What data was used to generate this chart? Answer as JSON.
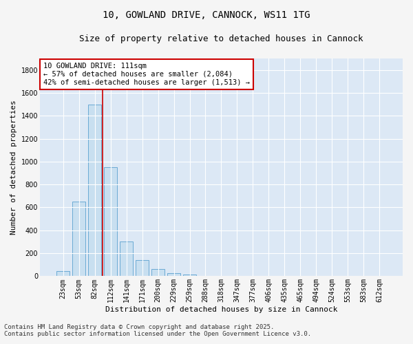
{
  "title_line1": "10, GOWLAND DRIVE, CANNOCK, WS11 1TG",
  "title_line2": "Size of property relative to detached houses in Cannock",
  "xlabel": "Distribution of detached houses by size in Cannock",
  "ylabel": "Number of detached properties",
  "categories": [
    "23sqm",
    "53sqm",
    "82sqm",
    "112sqm",
    "141sqm",
    "171sqm",
    "200sqm",
    "229sqm",
    "259sqm",
    "288sqm",
    "318sqm",
    "347sqm",
    "377sqm",
    "406sqm",
    "435sqm",
    "465sqm",
    "494sqm",
    "524sqm",
    "553sqm",
    "583sqm",
    "612sqm"
  ],
  "values": [
    45,
    650,
    1500,
    950,
    300,
    140,
    65,
    25,
    15,
    5,
    2,
    1,
    0,
    0,
    0,
    0,
    0,
    0,
    0,
    0,
    0
  ],
  "bar_color": "#c8dff0",
  "bar_edgecolor": "#6aaad4",
  "vline_x": 2.5,
  "vline_color": "#cc0000",
  "annotation_text": "10 GOWLAND DRIVE: 111sqm\n← 57% of detached houses are smaller (2,084)\n42% of semi-detached houses are larger (1,513) →",
  "annotation_box_color": "#ffffff",
  "annotation_border_color": "#cc0000",
  "ylim": [
    0,
    1900
  ],
  "yticks": [
    0,
    200,
    400,
    600,
    800,
    1000,
    1200,
    1400,
    1600,
    1800
  ],
  "background_color": "#dce8f5",
  "grid_color": "#ffffff",
  "fig_background": "#f5f5f5",
  "footer_line1": "Contains HM Land Registry data © Crown copyright and database right 2025.",
  "footer_line2": "Contains public sector information licensed under the Open Government Licence v3.0.",
  "title_fontsize": 10,
  "subtitle_fontsize": 9,
  "axis_label_fontsize": 8,
  "tick_fontsize": 7,
  "annotation_fontsize": 7.5,
  "footer_fontsize": 6.5
}
